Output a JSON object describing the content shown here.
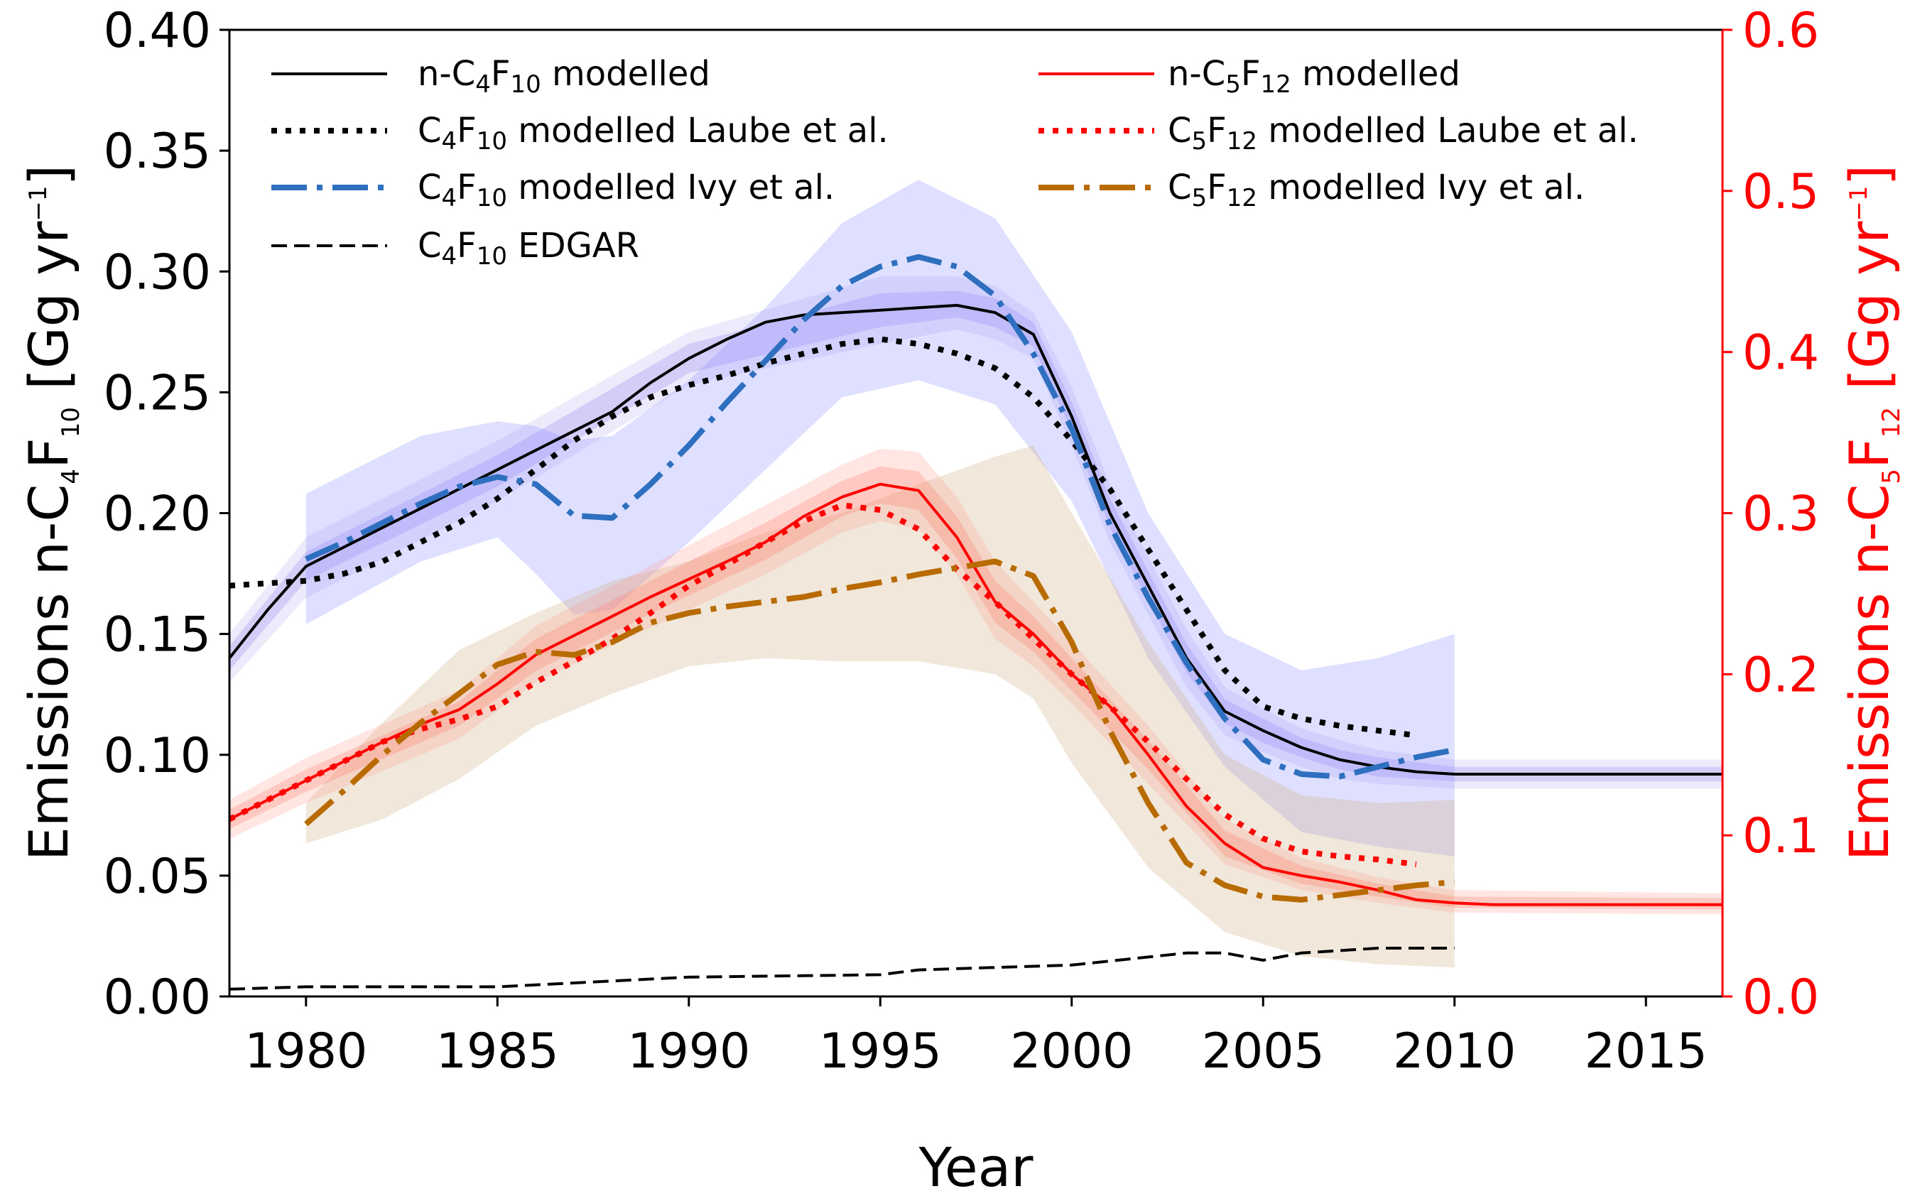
{
  "chart_data": {
    "type": "line",
    "xlabel": "Year",
    "ylabel_left": {
      "base": "Emissions n-C",
      "s1": "4",
      "m1": "F",
      "s2": "10",
      "tail": " [Gg yr",
      "sup": "−1",
      "end": "]"
    },
    "ylabel_right": {
      "base": "Emissions n-C",
      "s1": "5",
      "m1": "F",
      "s2": "12",
      "tail": " [Gg yr",
      "sup": "−1",
      "end": "]"
    },
    "xlim": [
      1978,
      2017
    ],
    "ylim_left": [
      0,
      0.4
    ],
    "ylim_right": [
      0,
      0.6
    ],
    "x_ticks": [
      1980,
      1985,
      1990,
      1995,
      2000,
      2005,
      2010,
      2015
    ],
    "y_ticks_left": [
      "0.00",
      "0.05",
      "0.10",
      "0.15",
      "0.20",
      "0.25",
      "0.30",
      "0.35",
      "0.40"
    ],
    "y_ticks_right": [
      "0.0",
      "0.1",
      "0.2",
      "0.3",
      "0.4",
      "0.5",
      "0.6"
    ],
    "colors": {
      "black": "#000000",
      "red": "#ff0000",
      "blue": "#2f6fbf",
      "orange": "#b86b00",
      "purple_band": "#7b68ee",
      "red_band": "#ff4d4d",
      "tan_band": "#d2b48c",
      "blue_band": "#9999ff"
    },
    "legend": [
      {
        "id": "c4mod",
        "pre": "n-C",
        "s1": "4",
        "m": "F",
        "s2": "10",
        "post": " modelled",
        "style": "solid",
        "color": "#000000"
      },
      {
        "id": "c4laube",
        "pre": "C",
        "s1": "4",
        "m": "F",
        "s2": "10",
        "post": " modelled Laube et al.",
        "style": "dotted",
        "color": "#000000"
      },
      {
        "id": "c4ivy",
        "pre": "C",
        "s1": "4",
        "m": "F",
        "s2": "10",
        "post": " modelled Ivy et al.",
        "style": "dashdot",
        "color": "#2f6fbf"
      },
      {
        "id": "c4edgar",
        "pre": "C",
        "s1": "4",
        "m": "F",
        "s2": "10",
        "post": " EDGAR",
        "style": "dashed",
        "color": "#000000"
      },
      {
        "id": "c5mod",
        "pre": "n-C",
        "s1": "5",
        "m": "F",
        "s2": "12",
        "post": " modelled",
        "style": "solid",
        "color": "#ff0000"
      },
      {
        "id": "c5laube",
        "pre": "C",
        "s1": "5",
        "m": "F",
        "s2": "12",
        "post": " modelled Laube et al.",
        "style": "dotted",
        "color": "#ff0000"
      },
      {
        "id": "c5ivy",
        "pre": "C",
        "s1": "5",
        "m": "F",
        "s2": "12",
        "post": " modelled Ivy et al.",
        "style": "dashdot",
        "color": "#b86b00"
      }
    ],
    "series": [
      {
        "id": "c4mod",
        "axis": "left",
        "style": "solid",
        "color": "#000000",
        "x": [
          1978,
          1979,
          1980,
          1981,
          1982,
          1983,
          1984,
          1985,
          1986,
          1987,
          1988,
          1989,
          1990,
          1991,
          1992,
          1993,
          1994,
          1995,
          1996,
          1997,
          1998,
          1999,
          2000,
          2001,
          2002,
          2003,
          2004,
          2005,
          2006,
          2007,
          2008,
          2009,
          2010,
          2011,
          2012,
          2013,
          2014,
          2015,
          2016,
          2017
        ],
        "y": [
          0.14,
          0.16,
          0.178,
          0.186,
          0.194,
          0.202,
          0.21,
          0.218,
          0.226,
          0.234,
          0.242,
          0.254,
          0.264,
          0.272,
          0.279,
          0.282,
          0.283,
          0.284,
          0.285,
          0.286,
          0.283,
          0.274,
          0.24,
          0.2,
          0.17,
          0.14,
          0.118,
          0.11,
          0.103,
          0.098,
          0.095,
          0.093,
          0.092,
          0.092,
          0.092,
          0.092,
          0.092,
          0.092,
          0.092,
          0.092
        ]
      },
      {
        "id": "c4laube",
        "axis": "left",
        "style": "dotted",
        "color": "#000000",
        "x": [
          1978,
          1979,
          1980,
          1981,
          1982,
          1983,
          1984,
          1985,
          1986,
          1987,
          1988,
          1989,
          1990,
          1991,
          1992,
          1993,
          1994,
          1995,
          1996,
          1997,
          1998,
          1999,
          2000,
          2001,
          2002,
          2003,
          2004,
          2005,
          2006,
          2007,
          2008,
          2009
        ],
        "y": [
          0.17,
          0.171,
          0.172,
          0.175,
          0.18,
          0.188,
          0.196,
          0.206,
          0.218,
          0.23,
          0.24,
          0.248,
          0.253,
          0.257,
          0.262,
          0.266,
          0.27,
          0.272,
          0.27,
          0.266,
          0.26,
          0.248,
          0.23,
          0.21,
          0.185,
          0.16,
          0.135,
          0.12,
          0.115,
          0.112,
          0.11,
          0.108
        ]
      },
      {
        "id": "c4ivy",
        "axis": "left",
        "style": "dashdot",
        "color": "#2f6fbf",
        "x": [
          1980,
          1981,
          1982,
          1983,
          1984,
          1985,
          1986,
          1987,
          1988,
          1989,
          1990,
          1991,
          1992,
          1993,
          1994,
          1995,
          1996,
          1997,
          1998,
          1999,
          2000,
          2001,
          2002,
          2003,
          2004,
          2005,
          2006,
          2007,
          2008,
          2009,
          2010
        ],
        "y": [
          0.181,
          0.188,
          0.196,
          0.204,
          0.211,
          0.215,
          0.212,
          0.199,
          0.198,
          0.212,
          0.228,
          0.246,
          0.263,
          0.28,
          0.294,
          0.302,
          0.306,
          0.302,
          0.29,
          0.266,
          0.235,
          0.195,
          0.165,
          0.138,
          0.115,
          0.098,
          0.092,
          0.091,
          0.095,
          0.099,
          0.102
        ]
      },
      {
        "id": "c4edgar",
        "axis": "left",
        "style": "dashed",
        "color": "#000000",
        "x": [
          1978,
          1980,
          1985,
          1990,
          1995,
          1996,
          2000,
          2003,
          2004,
          2005,
          2006,
          2008,
          2010
        ],
        "y": [
          0.003,
          0.004,
          0.004,
          0.008,
          0.009,
          0.011,
          0.013,
          0.018,
          0.018,
          0.015,
          0.018,
          0.02,
          0.02
        ]
      },
      {
        "id": "c5mod",
        "axis": "right",
        "style": "solid",
        "color": "#ff0000",
        "x": [
          1978,
          1979,
          1980,
          1981,
          1982,
          1983,
          1984,
          1985,
          1986,
          1987,
          1988,
          1989,
          1990,
          1991,
          1992,
          1993,
          1994,
          1995,
          1996,
          1997,
          1998,
          1999,
          2000,
          2001,
          2002,
          2003,
          2004,
          2005,
          2006,
          2007,
          2008,
          2009,
          2010,
          2011,
          2012,
          2013,
          2014,
          2015,
          2016,
          2017
        ],
        "y": [
          0.11,
          0.122,
          0.134,
          0.146,
          0.158,
          0.169,
          0.178,
          0.194,
          0.212,
          0.224,
          0.236,
          0.248,
          0.259,
          0.27,
          0.282,
          0.298,
          0.31,
          0.318,
          0.314,
          0.285,
          0.245,
          0.225,
          0.2,
          0.18,
          0.15,
          0.118,
          0.095,
          0.08,
          0.075,
          0.071,
          0.066,
          0.06,
          0.058,
          0.057,
          0.057,
          0.057,
          0.057,
          0.057,
          0.057,
          0.057
        ]
      },
      {
        "id": "c5laube",
        "axis": "right",
        "style": "dotted",
        "color": "#ff0000",
        "x": [
          1978,
          1979,
          1980,
          1981,
          1982,
          1983,
          1984,
          1985,
          1986,
          1987,
          1988,
          1989,
          1990,
          1991,
          1992,
          1993,
          1994,
          1995,
          1996,
          1997,
          1998,
          1999,
          2000,
          2001,
          2002,
          2003,
          2004,
          2005,
          2006,
          2007,
          2008,
          2009
        ],
        "y": [
          0.11,
          0.122,
          0.134,
          0.146,
          0.158,
          0.166,
          0.172,
          0.18,
          0.195,
          0.208,
          0.222,
          0.238,
          0.255,
          0.268,
          0.282,
          0.295,
          0.305,
          0.302,
          0.29,
          0.265,
          0.245,
          0.222,
          0.2,
          0.18,
          0.158,
          0.135,
          0.113,
          0.098,
          0.09,
          0.087,
          0.085,
          0.082
        ]
      },
      {
        "id": "c5ivy",
        "axis": "right",
        "style": "dashdot",
        "color": "#b86b00",
        "x": [
          1980,
          1981,
          1982,
          1983,
          1984,
          1985,
          1986,
          1987,
          1988,
          1989,
          1990,
          1991,
          1992,
          1993,
          1994,
          1995,
          1996,
          1997,
          1998,
          1999,
          2000,
          2001,
          2002,
          2003,
          2004,
          2005,
          2006,
          2007,
          2008,
          2009,
          2010
        ],
        "y": [
          0.107,
          0.128,
          0.15,
          0.17,
          0.188,
          0.206,
          0.214,
          0.212,
          0.22,
          0.232,
          0.238,
          0.242,
          0.245,
          0.248,
          0.253,
          0.257,
          0.262,
          0.266,
          0.27,
          0.261,
          0.22,
          0.165,
          0.12,
          0.083,
          0.069,
          0.062,
          0.06,
          0.063,
          0.066,
          0.069,
          0.071
        ]
      }
    ],
    "bands": [
      {
        "id": "c4-band-outer",
        "axis": "left",
        "color": "#9a8ce8",
        "opacity": 0.18,
        "x": [
          1978,
          1980,
          1985,
          1990,
          1995,
          1997,
          1998,
          1999,
          2000,
          2001,
          2002,
          2003,
          2004,
          2005,
          2006,
          2007,
          2008,
          2010,
          2017
        ],
        "upper": [
          0.15,
          0.19,
          0.23,
          0.275,
          0.298,
          0.298,
          0.294,
          0.283,
          0.252,
          0.212,
          0.182,
          0.152,
          0.128,
          0.119,
          0.111,
          0.106,
          0.102,
          0.098,
          0.098
        ],
        "lower": [
          0.13,
          0.165,
          0.205,
          0.253,
          0.27,
          0.276,
          0.272,
          0.264,
          0.228,
          0.188,
          0.158,
          0.128,
          0.108,
          0.101,
          0.095,
          0.09,
          0.088,
          0.086,
          0.086
        ]
      },
      {
        "id": "c4-band-inner",
        "axis": "left",
        "color": "#7b68ee",
        "opacity": 0.22,
        "x": [
          1978,
          1980,
          1985,
          1990,
          1995,
          1997,
          1998,
          1999,
          2000,
          2001,
          2002,
          2003,
          2004,
          2005,
          2006,
          2007,
          2008,
          2010,
          2017
        ],
        "upper": [
          0.145,
          0.184,
          0.224,
          0.27,
          0.291,
          0.292,
          0.289,
          0.279,
          0.246,
          0.206,
          0.176,
          0.146,
          0.123,
          0.115,
          0.107,
          0.102,
          0.099,
          0.095,
          0.095
        ],
        "lower": [
          0.135,
          0.172,
          0.211,
          0.258,
          0.277,
          0.281,
          0.277,
          0.269,
          0.234,
          0.194,
          0.164,
          0.134,
          0.113,
          0.105,
          0.099,
          0.094,
          0.091,
          0.089,
          0.089
        ]
      },
      {
        "id": "c4-ivy-band",
        "axis": "left",
        "color": "#8c8cff",
        "opacity": 0.28,
        "x": [
          1980,
          1983,
          1985,
          1986,
          1987,
          1988,
          1990,
          1992,
          1994,
          1996,
          1998,
          2000,
          2002,
          2004,
          2006,
          2008,
          2010
        ],
        "upper": [
          0.208,
          0.232,
          0.238,
          0.236,
          0.23,
          0.232,
          0.255,
          0.285,
          0.32,
          0.338,
          0.322,
          0.275,
          0.2,
          0.15,
          0.135,
          0.14,
          0.15
        ],
        "lower": [
          0.154,
          0.18,
          0.19,
          0.175,
          0.158,
          0.16,
          0.188,
          0.218,
          0.248,
          0.255,
          0.245,
          0.205,
          0.14,
          0.095,
          0.068,
          0.062,
          0.058
        ]
      },
      {
        "id": "c5-ivy-band",
        "axis": "right",
        "color": "#d2b48c",
        "opacity": 0.32,
        "x": [
          1980,
          1982,
          1984,
          1986,
          1988,
          1990,
          1992,
          1994,
          1996,
          1998,
          1999,
          2000,
          2002,
          2004,
          2006,
          2008,
          2010
        ],
        "upper": [
          0.12,
          0.17,
          0.215,
          0.238,
          0.258,
          0.27,
          0.288,
          0.3,
          0.318,
          0.335,
          0.342,
          0.3,
          0.22,
          0.15,
          0.125,
          0.12,
          0.122
        ],
        "lower": [
          0.095,
          0.11,
          0.135,
          0.168,
          0.188,
          0.205,
          0.21,
          0.208,
          0.208,
          0.2,
          0.185,
          0.145,
          0.08,
          0.04,
          0.025,
          0.02,
          0.018
        ]
      },
      {
        "id": "c5-band-outer",
        "axis": "right",
        "color": "#ff9a8a",
        "opacity": 0.25,
        "x": [
          1978,
          1980,
          1984,
          1986,
          1988,
          1990,
          1992,
          1994,
          1995,
          1996,
          1997,
          1998,
          1999,
          2000,
          2002,
          2004,
          2006,
          2008,
          2010,
          2017
        ],
        "upper": [
          0.122,
          0.148,
          0.19,
          0.23,
          0.255,
          0.28,
          0.305,
          0.33,
          0.34,
          0.338,
          0.31,
          0.27,
          0.245,
          0.22,
          0.168,
          0.11,
          0.086,
          0.074,
          0.066,
          0.064
        ],
        "lower": [
          0.098,
          0.12,
          0.16,
          0.195,
          0.218,
          0.24,
          0.262,
          0.288,
          0.295,
          0.29,
          0.262,
          0.222,
          0.205,
          0.182,
          0.132,
          0.082,
          0.066,
          0.058,
          0.052,
          0.051
        ]
      },
      {
        "id": "c5-band-inner",
        "axis": "right",
        "color": "#ff6f5e",
        "opacity": 0.25,
        "x": [
          1978,
          1980,
          1984,
          1986,
          1988,
          1990,
          1992,
          1994,
          1995,
          1996,
          1997,
          1998,
          1999,
          2000,
          2002,
          2004,
          2006,
          2008,
          2010,
          2017
        ],
        "upper": [
          0.116,
          0.141,
          0.183,
          0.222,
          0.246,
          0.27,
          0.294,
          0.32,
          0.329,
          0.326,
          0.298,
          0.258,
          0.236,
          0.21,
          0.159,
          0.103,
          0.081,
          0.07,
          0.062,
          0.061
        ],
        "lower": [
          0.104,
          0.127,
          0.168,
          0.202,
          0.226,
          0.249,
          0.271,
          0.298,
          0.306,
          0.302,
          0.272,
          0.232,
          0.214,
          0.19,
          0.141,
          0.087,
          0.07,
          0.062,
          0.055,
          0.054
        ]
      }
    ]
  }
}
